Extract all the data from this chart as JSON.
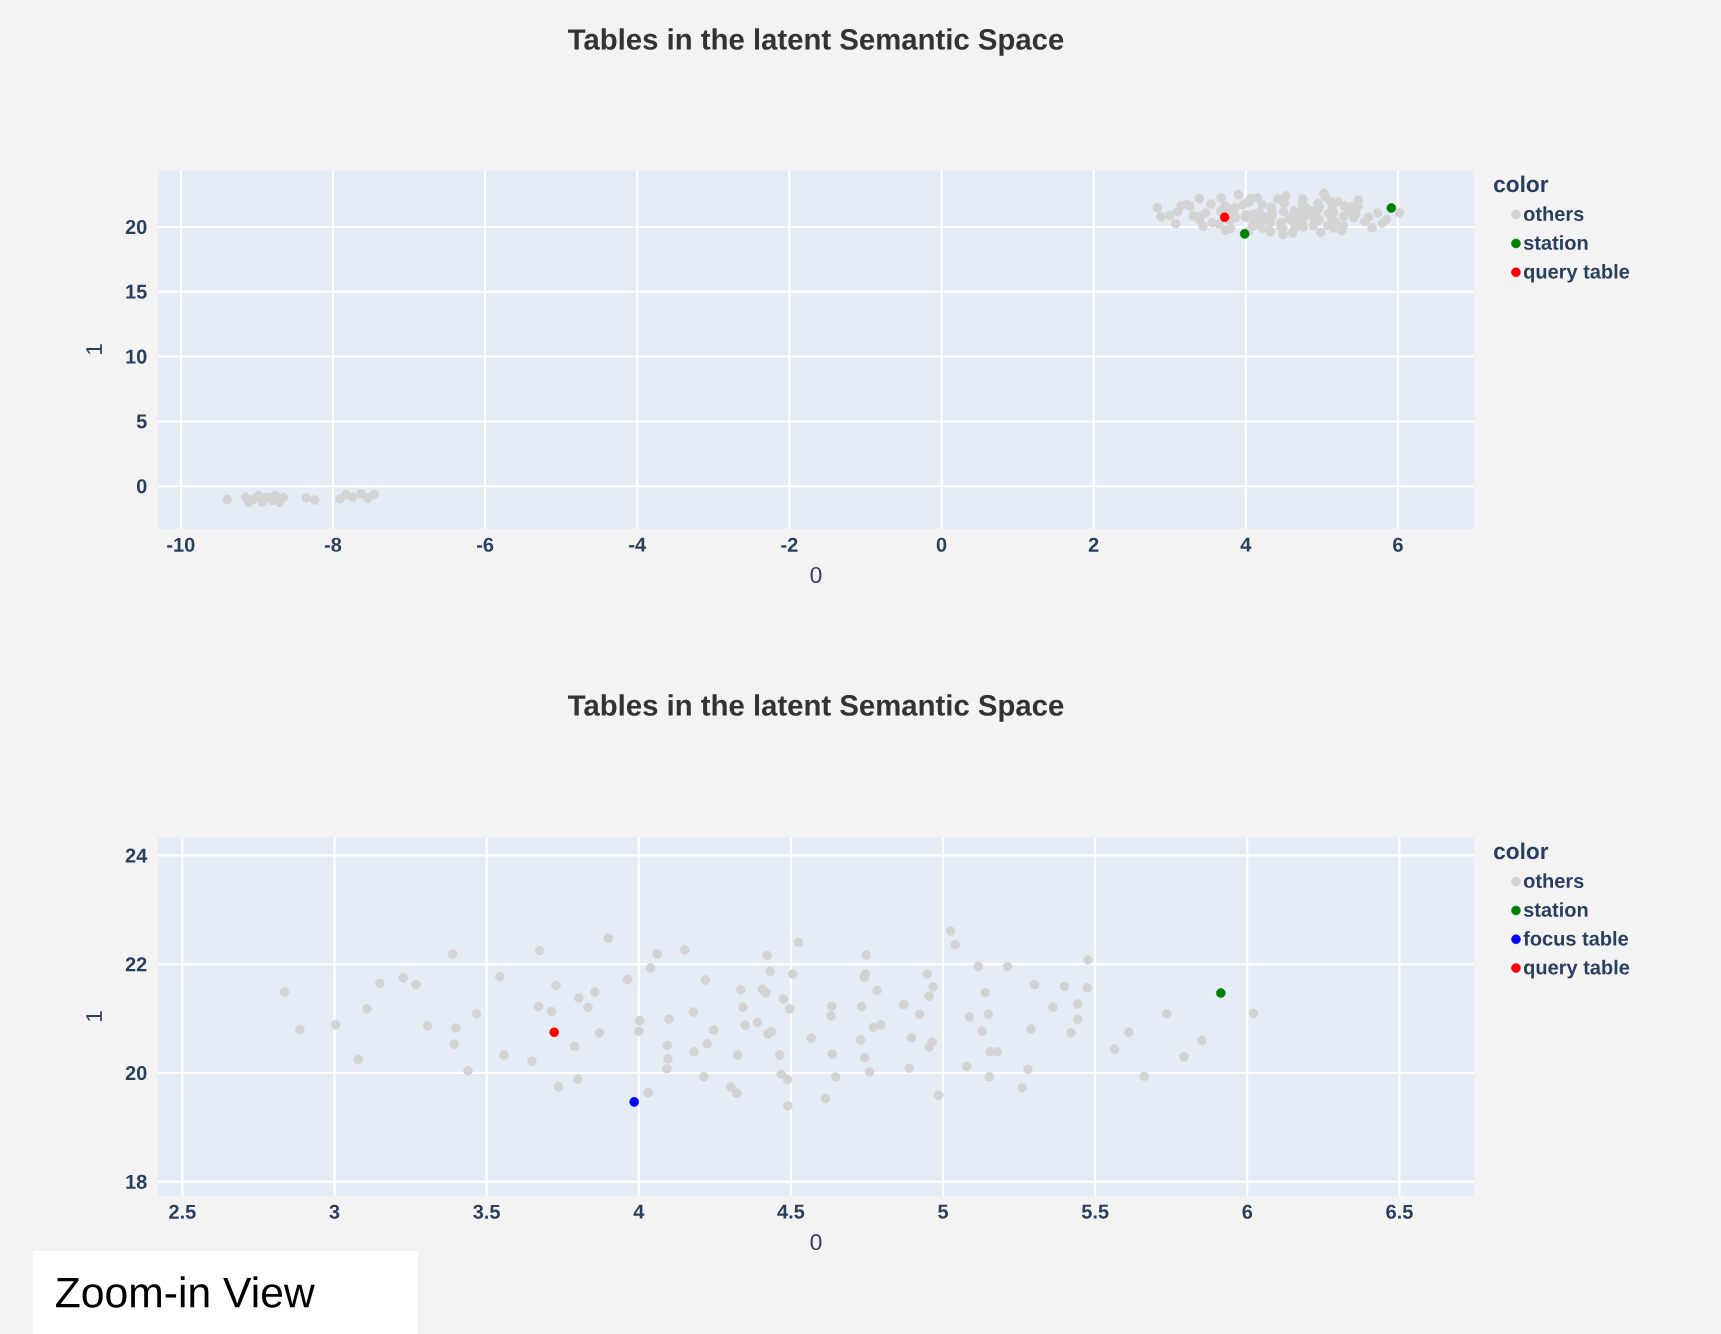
{
  "chart_data": [
    {
      "type": "scatter",
      "title": "Tables in the latent Semantic Space",
      "xlabel": "0",
      "ylabel": "1",
      "legend_title": "color",
      "legend": "right",
      "grid": true,
      "marker": "circle",
      "xlim": [
        -10.3,
        7.0
      ],
      "ylim": [
        -3.3,
        24.4
      ],
      "xticks": [
        -10,
        -8,
        -6,
        -4,
        -2,
        0,
        2,
        4,
        6
      ],
      "yticks": [
        0,
        5,
        10,
        15,
        20
      ],
      "series": [
        {
          "name": "others",
          "color": "#d3d3d3",
          "x": [
            -9.39,
            -9.15,
            -9.11,
            -9.04,
            -8.98,
            -8.93,
            -8.87,
            -8.8,
            -8.76,
            -8.7,
            -8.65,
            -8.35,
            -8.24,
            -7.91,
            -7.83,
            -7.74,
            -7.63,
            -7.54,
            -7.46,
            2.836,
            2.886,
            3.004,
            3.078,
            3.106,
            3.149,
            3.226,
            3.268,
            3.306,
            3.388,
            3.399,
            3.393,
            3.439,
            3.467,
            3.543,
            3.557,
            3.649,
            3.674,
            3.671,
            3.713,
            3.728,
            3.736,
            3.789,
            3.8,
            3.803,
            3.833,
            3.856,
            3.871,
            3.9,
            3.963,
            4.003,
            4.0,
            4.031,
            4.039,
            4.061,
            4.099,
            4.094,
            4.093,
            4.151,
            4.179,
            4.181,
            4.214,
            4.219,
            4.225,
            4.246,
            4.303,
            4.322,
            4.325,
            4.335,
            4.342,
            4.35,
            4.422,
            4.463,
            4.468,
            4.489,
            4.49,
            4.496,
            4.506,
            4.525,
            4.567,
            4.614,
            4.634,
            4.632,
            4.636,
            4.647,
            4.729,
            4.732,
            4.742,
            4.748,
            4.741,
            4.758,
            4.783,
            4.795,
            4.871,
            4.889,
            4.896,
            4.923,
            4.948,
            4.954,
            4.967,
            4.955,
            4.964,
            4.986,
            5.024,
            5.04,
            5.078,
            5.087,
            5.116,
            5.128,
            5.139,
            5.149,
            5.152,
            5.178,
            5.212,
            5.26,
            5.279,
            5.289,
            5.301,
            5.361,
            5.399,
            5.42,
            5.442,
            5.474,
            5.476,
            5.564,
            5.611,
            5.661,
            5.735,
            5.792,
            5.851,
            6.02
          ],
          "values": [
            -1.03,
            -0.85,
            -1.24,
            -0.98,
            -0.72,
            -1.24,
            -0.85,
            -1.11,
            -0.72,
            -1.24,
            -0.85,
            -0.9,
            -1.06,
            -0.98,
            -0.64,
            -0.85,
            -0.59,
            -0.9,
            -0.64,
            21.49,
            20.8,
            20.89,
            20.25,
            21.18,
            21.65,
            21.75,
            21.63,
            20.87,
            22.19,
            20.83,
            20.53,
            20.04,
            21.09,
            21.77,
            20.33,
            20.22,
            22.25,
            21.22,
            21.13,
            21.61,
            19.75,
            20.49,
            19.89,
            21.38,
            21.21,
            21.49,
            20.74,
            22.48,
            21.72,
            20.96,
            20.77,
            19.64,
            21.93,
            22.19,
            20.99,
            20.51,
            20.08,
            22.26,
            21.12,
            20.39,
            19.93,
            21.71,
            20.54,
            20.79,
            19.74,
            19.63,
            20.33,
            21.53,
            21.21,
            20.88,
            22.16,
            20.33,
            19.98,
            19.88,
            19.4,
            21.18,
            21.82,
            22.4,
            20.64,
            19.53,
            21.23,
            21.05,
            20.35,
            19.93,
            20.61,
            21.22,
            20.28,
            22.17,
            21.76,
            20.02,
            21.52,
            20.89,
            21.26,
            20.09,
            20.65,
            21.08,
            21.82,
            21.41,
            21.58,
            20.48,
            20.57,
            19.59,
            22.61,
            22.36,
            20.12,
            21.03,
            21.96,
            20.77,
            21.48,
            21.08,
            19.93,
            20.39,
            21.96,
            19.73,
            20.07,
            20.81,
            21.63,
            21.21,
            21.59,
            20.74,
            20.99,
            21.57,
            22.08,
            20.44,
            20.75,
            19.94,
            21.09,
            20.3,
            20.6,
            21.1
          ]
        },
        {
          "name": "station",
          "color": "#008000",
          "x": [
            3.985,
            5.913
          ],
          "values": [
            19.47,
            21.47
          ]
        },
        {
          "name": "query table",
          "color": "#ff0000",
          "x": [
            3.722
          ],
          "values": [
            20.75
          ]
        }
      ]
    },
    {
      "type": "scatter",
      "title": "Tables in the latent Semantic Space",
      "xlabel": "0",
      "ylabel": "1",
      "legend_title": "color",
      "legend": "right",
      "grid": true,
      "marker": "circle",
      "xlim": [
        2.42,
        6.745
      ],
      "ylim": [
        17.74,
        24.34
      ],
      "xticks": [
        2.5,
        3,
        3.5,
        4,
        4.5,
        5,
        5.5,
        6,
        6.5
      ],
      "yticks": [
        18,
        20,
        22,
        24
      ],
      "annotations": [
        "Zoom-in View"
      ],
      "series": [
        {
          "name": "others",
          "color": "#d3d3d3",
          "x": [
            2.836,
            2.886,
            3.004,
            3.078,
            3.106,
            3.149,
            3.226,
            3.268,
            3.306,
            3.388,
            3.399,
            3.393,
            3.439,
            3.467,
            3.543,
            3.557,
            3.649,
            3.674,
            3.671,
            3.713,
            3.728,
            3.736,
            3.789,
            3.8,
            3.803,
            3.833,
            3.856,
            3.871,
            3.9,
            3.963,
            4.003,
            4.0,
            4.031,
            4.039,
            4.061,
            4.099,
            4.094,
            4.096,
            4.093,
            4.151,
            4.179,
            4.181,
            4.214,
            4.219,
            4.225,
            4.246,
            4.303,
            4.322,
            4.325,
            4.335,
            4.342,
            4.35,
            4.39,
            4.406,
            4.417,
            4.422,
            4.425,
            4.436,
            4.432,
            4.463,
            4.468,
            4.475,
            4.489,
            4.49,
            4.496,
            4.506,
            4.525,
            4.567,
            4.614,
            4.634,
            4.632,
            4.636,
            4.647,
            4.729,
            4.732,
            4.742,
            4.748,
            4.745,
            4.741,
            4.758,
            4.771,
            4.783,
            4.795,
            4.871,
            4.889,
            4.896,
            4.923,
            4.948,
            4.954,
            4.967,
            4.955,
            4.964,
            4.986,
            5.024,
            5.04,
            5.078,
            5.087,
            5.116,
            5.128,
            5.139,
            5.149,
            5.152,
            5.154,
            5.178,
            5.212,
            5.26,
            5.279,
            5.289,
            5.301,
            5.361,
            5.399,
            5.42,
            5.442,
            5.442,
            5.474,
            5.476,
            5.564,
            5.611,
            5.661,
            5.735,
            5.792,
            5.851,
            6.02
          ],
          "values": [
            21.49,
            20.8,
            20.89,
            20.25,
            21.18,
            21.65,
            21.75,
            21.63,
            20.87,
            22.19,
            20.83,
            20.53,
            20.04,
            21.09,
            21.77,
            20.33,
            20.22,
            22.25,
            21.22,
            21.13,
            21.61,
            19.75,
            20.49,
            19.89,
            21.38,
            21.21,
            21.49,
            20.74,
            22.48,
            21.72,
            20.96,
            20.77,
            19.64,
            21.93,
            22.19,
            20.99,
            20.51,
            20.26,
            20.08,
            22.26,
            21.12,
            20.39,
            19.93,
            21.71,
            20.54,
            20.79,
            19.74,
            19.63,
            20.33,
            21.53,
            21.21,
            20.88,
            20.93,
            21.54,
            21.48,
            22.16,
            20.72,
            20.76,
            21.87,
            20.33,
            19.98,
            21.36,
            19.88,
            19.4,
            21.18,
            21.82,
            22.4,
            20.64,
            19.53,
            21.23,
            21.05,
            20.35,
            19.93,
            20.61,
            21.22,
            20.28,
            22.17,
            21.82,
            21.76,
            20.02,
            20.84,
            21.52,
            20.89,
            21.26,
            20.09,
            20.65,
            21.08,
            21.82,
            21.41,
            21.58,
            20.48,
            20.57,
            19.59,
            22.61,
            22.36,
            20.12,
            21.03,
            21.96,
            20.77,
            21.48,
            21.08,
            19.93,
            20.39,
            20.39,
            21.96,
            19.73,
            20.07,
            20.81,
            21.63,
            21.21,
            21.59,
            20.74,
            21.27,
            20.99,
            21.57,
            22.08,
            20.44,
            20.75,
            19.94,
            21.09,
            20.3,
            20.6,
            21.1
          ]
        },
        {
          "name": "station",
          "color": "#008000",
          "x": [
            5.913
          ],
          "values": [
            21.47
          ]
        },
        {
          "name": "focus table",
          "color": "#0000ff",
          "x": [
            3.985
          ],
          "values": [
            19.47
          ]
        },
        {
          "name": "query table",
          "color": "#ff0000",
          "x": [
            3.722
          ],
          "values": [
            20.75
          ]
        }
      ]
    }
  ]
}
